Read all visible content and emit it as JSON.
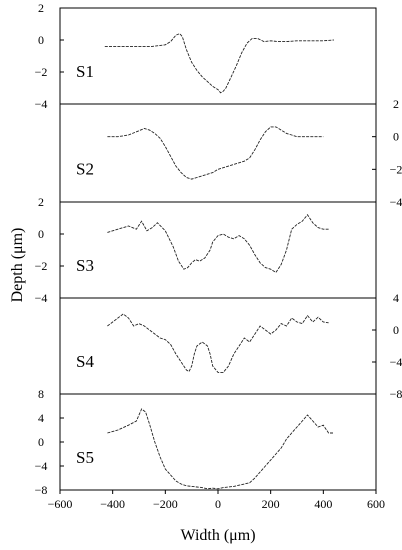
{
  "chart_data": {
    "type": "line",
    "xlabel": "Width (μm)",
    "ylabel": "Depth (μm)",
    "xlim": [
      -600,
      600
    ],
    "xticks": [
      -600,
      -400,
      -200,
      0,
      200,
      400,
      600
    ],
    "grid": false,
    "panels": [
      {
        "label": "S1",
        "ylim": [
          -4,
          2
        ],
        "yticks": [
          -4,
          -2,
          0,
          2
        ],
        "y_axis_side": "left",
        "series": [
          {
            "x": [
              -430,
              -380,
              -320,
              -250,
              -200,
              -180,
              -160,
              -145,
              -135,
              -120,
              -100,
              -80,
              -60,
              -40,
              -20,
              0,
              10,
              20,
              30,
              50,
              70,
              90,
              110,
              130,
              150,
              175,
              200,
              230,
              260,
              300,
              350,
              400,
              440
            ],
            "y": [
              -0.4,
              -0.4,
              -0.4,
              -0.4,
              -0.3,
              -0.1,
              0.3,
              0.4,
              0.2,
              -0.6,
              -1.4,
              -1.9,
              -2.3,
              -2.6,
              -2.9,
              -3.1,
              -3.3,
              -3.2,
              -3.0,
              -2.3,
              -1.6,
              -0.8,
              -0.2,
              0.1,
              0.1,
              -0.1,
              -0.05,
              -0.1,
              -0.1,
              -0.05,
              -0.05,
              -0.05,
              0.0
            ]
          }
        ]
      },
      {
        "label": "S2",
        "ylim": [
          -4,
          2
        ],
        "yticks": [
          -4,
          -2,
          0,
          2
        ],
        "y_axis_side": "right",
        "series": [
          {
            "x": [
              -420,
              -380,
              -340,
              -310,
              -280,
              -260,
              -240,
              -220,
              -200,
              -180,
              -160,
              -140,
              -120,
              -100,
              -80,
              -60,
              -40,
              -20,
              0,
              20,
              40,
              60,
              80,
              100,
              120,
              140,
              160,
              180,
              200,
              220,
              240,
              260,
              280,
              300,
              320,
              350,
              400
            ],
            "y": [
              0.0,
              0.0,
              0.1,
              0.3,
              0.5,
              0.4,
              0.2,
              -0.1,
              -0.6,
              -1.2,
              -1.8,
              -2.2,
              -2.5,
              -2.6,
              -2.5,
              -2.4,
              -2.3,
              -2.2,
              -2.0,
              -1.9,
              -1.8,
              -1.7,
              -1.6,
              -1.5,
              -1.3,
              -0.8,
              -0.2,
              0.3,
              0.6,
              0.6,
              0.4,
              0.2,
              0.1,
              0.0,
              0.0,
              0.0,
              0.0
            ]
          }
        ]
      },
      {
        "label": "S3",
        "ylim": [
          -4,
          2
        ],
        "yticks": [
          -4,
          -2,
          0,
          2
        ],
        "y_axis_side": "left",
        "series": [
          {
            "x": [
              -420,
              -380,
              -340,
              -310,
              -290,
              -270,
              -250,
              -230,
              -200,
              -170,
              -150,
              -130,
              -115,
              -100,
              -85,
              -70,
              -50,
              -30,
              -20,
              0,
              20,
              40,
              60,
              80,
              100,
              120,
              140,
              160,
              180,
              200,
              220,
              240,
              260,
              280,
              300,
              320,
              340,
              360,
              380,
              400,
              420
            ],
            "y": [
              0.1,
              0.3,
              0.5,
              0.3,
              0.8,
              0.2,
              0.4,
              0.7,
              0.2,
              -0.8,
              -1.7,
              -2.2,
              -2.1,
              -1.8,
              -1.6,
              -1.7,
              -1.5,
              -1.0,
              -0.5,
              -0.1,
              0.0,
              -0.2,
              -0.3,
              -0.1,
              -0.3,
              -0.7,
              -1.3,
              -1.8,
              -2.1,
              -2.2,
              -2.4,
              -1.9,
              -1.0,
              0.3,
              0.6,
              0.8,
              1.2,
              0.7,
              0.4,
              0.3,
              0.3
            ]
          }
        ]
      },
      {
        "label": "S4",
        "ylim": [
          -8,
          4
        ],
        "yticks": [
          -8,
          -4,
          0,
          4
        ],
        "y_axis_side": "right",
        "series": [
          {
            "x": [
              -420,
              -400,
              -380,
              -360,
              -340,
              -320,
              -300,
              -280,
              -260,
              -240,
              -220,
              -200,
              -180,
              -160,
              -140,
              -120,
              -110,
              -100,
              -90,
              -80,
              -60,
              -40,
              -30,
              -20,
              0,
              20,
              40,
              60,
              80,
              100,
              120,
              140,
              160,
              180,
              200,
              220,
              240,
              260,
              280,
              300,
              320,
              340,
              360,
              380,
              400,
              420
            ],
            "y": [
              0.5,
              1.0,
              1.5,
              2.0,
              1.5,
              0.5,
              0.8,
              0.5,
              0.0,
              -0.5,
              -1.0,
              -1.2,
              -1.8,
              -3.0,
              -4.0,
              -5.0,
              -5.2,
              -4.5,
              -3.0,
              -2.0,
              -1.5,
              -2.0,
              -3.0,
              -4.5,
              -5.3,
              -5.3,
              -4.5,
              -3.0,
              -2.0,
              -1.0,
              -1.5,
              -0.5,
              0.5,
              0.0,
              -0.5,
              0.0,
              0.8,
              0.5,
              1.5,
              1.0,
              0.8,
              1.8,
              1.0,
              1.6,
              1.0,
              0.9
            ]
          }
        ]
      },
      {
        "label": "S5",
        "ylim": [
          -8,
          8
        ],
        "yticks": [
          -8,
          -4,
          0,
          4,
          8
        ],
        "y_axis_side": "left",
        "series": [
          {
            "x": [
              -420,
              -380,
              -340,
              -310,
              -290,
              -275,
              -260,
              -240,
              -220,
              -200,
              -180,
              -160,
              -140,
              -120,
              -100,
              -80,
              -60,
              -40,
              -20,
              0,
              20,
              40,
              60,
              80,
              100,
              120,
              140,
              160,
              180,
              200,
              220,
              240,
              260,
              280,
              300,
              320,
              340,
              360,
              380,
              400,
              420,
              440
            ],
            "y": [
              1.5,
              2.0,
              2.8,
              3.5,
              5.5,
              5.0,
              3.0,
              0.0,
              -2.5,
              -4.5,
              -5.5,
              -6.5,
              -7.0,
              -7.3,
              -7.4,
              -7.5,
              -7.6,
              -7.8,
              -7.7,
              -7.8,
              -7.6,
              -7.5,
              -7.4,
              -7.2,
              -7.0,
              -6.8,
              -6.0,
              -5.0,
              -4.0,
              -3.0,
              -2.0,
              -1.0,
              0.5,
              1.5,
              2.5,
              3.5,
              4.5,
              3.5,
              2.5,
              2.8,
              1.5,
              1.5
            ]
          }
        ]
      }
    ]
  }
}
